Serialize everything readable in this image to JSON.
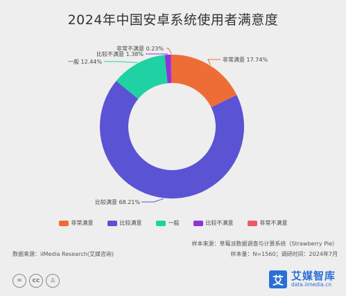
{
  "chart_data": {
    "type": "pie",
    "variant": "donut",
    "title": "2024年中国安卓系统使用者满意度",
    "categories": [
      "非常满意",
      "比较满意",
      "一般",
      "比较不满意",
      "非常不满意"
    ],
    "values": [
      17.74,
      68.21,
      12.44,
      1.38,
      0.23
    ],
    "colors": [
      "#ee6d36",
      "#5a53d3",
      "#1fd2a3",
      "#8c35d9",
      "#ee5a64"
    ],
    "slice_labels": [
      "非常满意 17.74%",
      "比较满意 68.21%",
      "一般 12.44%",
      "比较不满意 1.38%",
      "非常不满意 0.23%"
    ],
    "legend_position": "bottom"
  },
  "footer": {
    "source": "数据来源：iiMedia Research(艾媒咨询)",
    "sample_source": "样本来源：草莓派数据调查与计算系统（Strawberry Pie）",
    "sample_size": "样本量：N=1560；调研时间：2024年7月"
  },
  "license_icons": [
    "=",
    "cc",
    "person"
  ],
  "logo": {
    "mark": "艾",
    "name": "艾媒智库",
    "url": "data.iimedia.cn"
  }
}
